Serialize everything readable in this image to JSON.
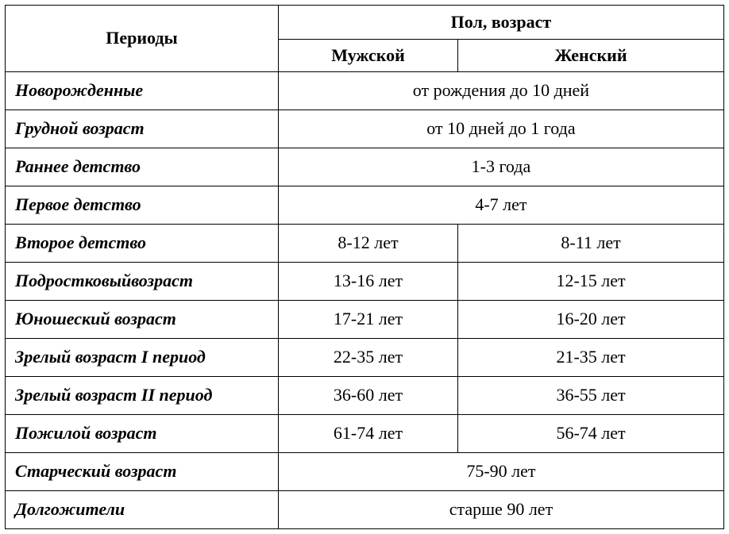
{
  "table": {
    "type": "table",
    "background_color": "#ffffff",
    "border_color": "#000000",
    "text_color": "#000000",
    "font_family": "Times New Roman",
    "cell_fontsize": 22,
    "column_widths_pct": [
      38,
      25,
      37
    ],
    "headers": {
      "periods": "Периоды",
      "group": "Пол, возраст",
      "male": "Мужской",
      "female": "Женский"
    },
    "rows": [
      {
        "period": "Новорожденные",
        "merged": true,
        "both": "от рождения до 10 дней"
      },
      {
        "period": "Грудной возраст",
        "merged": true,
        "both": "от 10 дней до 1 года"
      },
      {
        "period": "Раннее детство",
        "merged": true,
        "both": "1-3 года"
      },
      {
        "period": "Первое детство",
        "merged": true,
        "both": "4-7 лет"
      },
      {
        "period": "Второе детство",
        "merged": false,
        "male": "8-12 лет",
        "female": "8-11 лет"
      },
      {
        "period": "Подростковыйвозраст",
        "merged": false,
        "male": "13-16 лет",
        "female": "12-15 лет"
      },
      {
        "period": "Юношеский возраст",
        "merged": false,
        "male": "17-21 лет",
        "female": "16-20 лет"
      },
      {
        "period": "Зрелый возраст I период",
        "merged": false,
        "male": "22-35 лет",
        "female": "21-35 лет"
      },
      {
        "period": "Зрелый возраст II период",
        "merged": false,
        "male": "36-60 лет",
        "female": "36-55 лет"
      },
      {
        "period": "Пожилой возраст",
        "merged": false,
        "male": "61-74 лет",
        "female": "56-74 лет"
      },
      {
        "period": "Старческий возраст",
        "merged": true,
        "both": "75-90 лет"
      },
      {
        "period": "Долгожители",
        "merged": true,
        "both": "старше 90 лет"
      }
    ]
  }
}
